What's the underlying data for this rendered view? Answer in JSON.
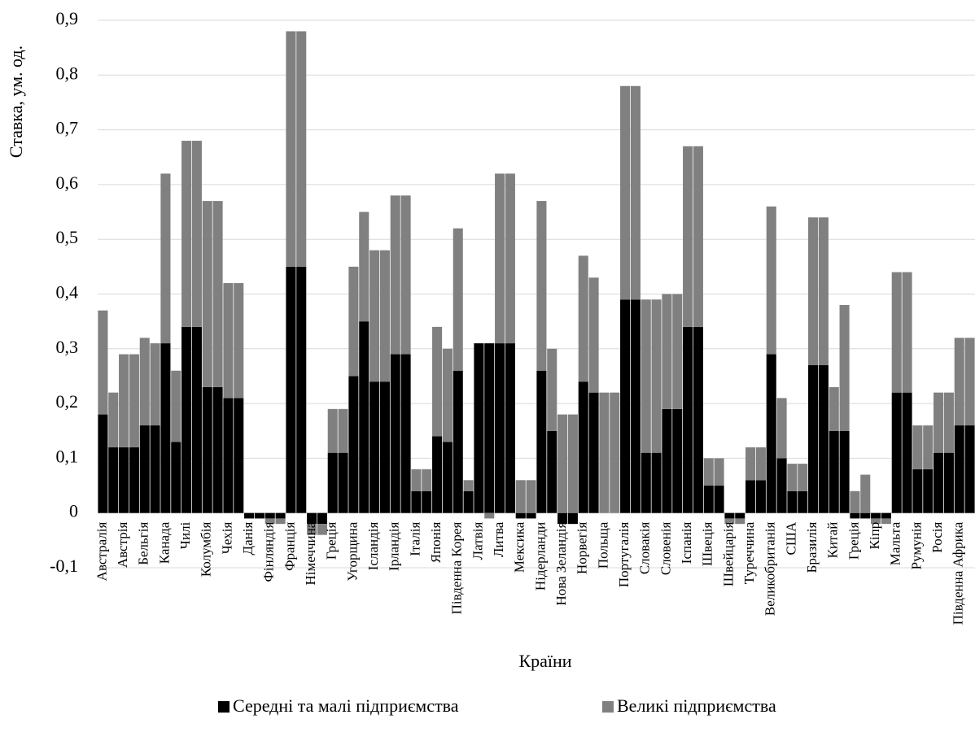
{
  "chart_data": {
    "type": "stacked_bar",
    "x_label": "Країни",
    "y_label": "Ставка, ум. од.",
    "categories": [
      "Австралія",
      null,
      "Австрія",
      null,
      "Бельгія",
      null,
      "Канада",
      null,
      "Чилі",
      null,
      "Колумбія",
      null,
      "Чехія",
      null,
      "Данія",
      null,
      "Фінляндія",
      null,
      "Франція",
      null,
      "Німеччина",
      null,
      "Греція",
      null,
      "Угорщина",
      null,
      "Ісландія",
      null,
      "Ірландія",
      null,
      "Італія",
      null,
      "Японія",
      null,
      "Південна Корея",
      null,
      "Латвія",
      null,
      "Литва",
      null,
      "Мексика",
      null,
      "Нідерланди",
      null,
      "Нова Зеландія",
      null,
      "Норвегія",
      null,
      "Польща",
      null,
      "Португалія",
      null,
      "Словакія",
      null,
      "Словенія",
      null,
      "Іспанія",
      null,
      "Швеція",
      null,
      "Швейцарія",
      null,
      "Туреччина",
      null,
      "Великобританія",
      null,
      "США",
      null,
      "Бразилія",
      null,
      "Китай",
      null,
      "Греція",
      null,
      "Кіпр",
      null,
      "Мальта",
      null,
      "Румунія",
      null,
      "Росія",
      null,
      "Південна Африка",
      null
    ],
    "series": [
      {
        "name": "Середні та малі підприємства",
        "color": "#000000",
        "values": [
          0.18,
          0.12,
          0.12,
          0.12,
          0.16,
          0.16,
          0.31,
          0.13,
          0.34,
          0.34,
          0.23,
          0.23,
          0.21,
          0.21,
          -0.01,
          -0.01,
          -0.01,
          -0.01,
          0.45,
          0.45,
          -0.02,
          -0.02,
          0.11,
          0.11,
          0.25,
          0.35,
          0.24,
          0.24,
          0.29,
          0.29,
          0.04,
          0.04,
          0.14,
          0.13,
          0.26,
          0.04,
          0.31,
          0.31,
          0.31,
          0.31,
          -0.01,
          -0.01,
          0.26,
          0.15,
          -0.02,
          -0.02,
          0.24,
          0.22,
          0,
          0,
          0.39,
          0.39,
          0.11,
          0.11,
          0.19,
          0.19,
          0.34,
          0.34,
          0.05,
          0.05,
          -0.01,
          -0.01,
          0.06,
          0.06,
          0.29,
          0.1,
          0.04,
          0.04,
          0.27,
          0.27,
          0.15,
          0.15,
          -0.01,
          -0.01,
          -0.01,
          -0.01,
          0.22,
          0.22,
          0.08,
          0.08,
          0.11,
          0.11,
          0.16,
          0.16
        ]
      },
      {
        "name": "Великі підприємства",
        "color": "#808080",
        "values": [
          0.19,
          0.1,
          0.17,
          0.17,
          0.16,
          0.15,
          0.31,
          0.13,
          0.34,
          0.34,
          0.34,
          0.34,
          0.21,
          0.21,
          0,
          0,
          -0.01,
          -0.01,
          0.43,
          0.43,
          -0.02,
          -0.02,
          0.08,
          0.08,
          0.2,
          0.2,
          0.24,
          0.24,
          0.29,
          0.29,
          0.04,
          0.04,
          0.2,
          0.17,
          0.26,
          0.02,
          0,
          -0.01,
          0.31,
          0.31,
          0.06,
          0.06,
          0.31,
          0.15,
          0.18,
          0.18,
          0.23,
          0.21,
          0.22,
          0.22,
          0.39,
          0.39,
          0.28,
          0.28,
          0.21,
          0.21,
          0.33,
          0.33,
          0.05,
          0.05,
          -0.01,
          -0.01,
          0.06,
          0.06,
          0.27,
          0.11,
          0.05,
          0.05,
          0.27,
          0.27,
          0.08,
          0.23,
          0.04,
          0.07,
          -0.01,
          -0.01,
          0.22,
          0.22,
          0.08,
          0.08,
          0.11,
          0.11,
          0.16,
          0.16
        ]
      }
    ],
    "ylim": [
      -0.1,
      0.9
    ],
    "yticks": [
      {
        "value": -0.1,
        "label": "-0,1"
      },
      0,
      {
        "value": 0.1,
        "label": "0,1"
      },
      {
        "value": 0.2,
        "label": "0,2"
      },
      {
        "value": 0.3,
        "label": "0,3"
      },
      {
        "value": 0.4,
        "label": "0,4"
      },
      {
        "value": 0.5,
        "label": "0,5"
      },
      {
        "value": 0.6,
        "label": "0,6"
      },
      {
        "value": 0.7,
        "label": "0,7"
      },
      {
        "value": 0.8,
        "label": "0,8"
      },
      {
        "value": 0.9,
        "label": "0,9"
      }
    ],
    "grid": true,
    "legend": "bottom"
  }
}
